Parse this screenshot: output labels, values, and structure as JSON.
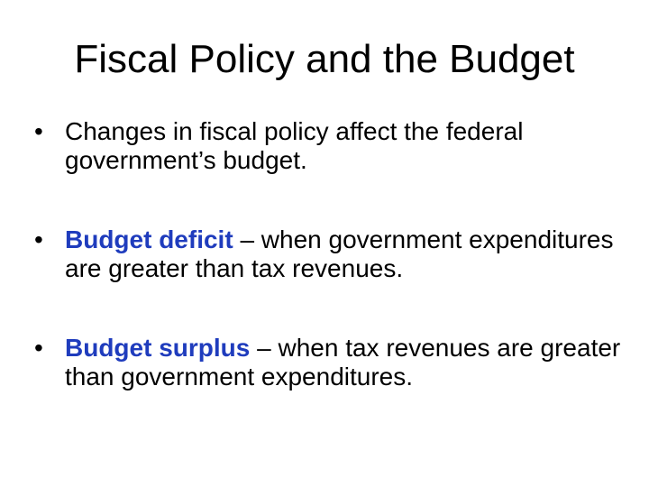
{
  "slide": {
    "title": "Fiscal Policy and the Budget",
    "bullet_marker": "•",
    "term_color": "#1f3cbd",
    "bullets": [
      {
        "term": "",
        "text": "Changes in fiscal policy affect the federal government’s budget."
      },
      {
        "term": "Budget deficit",
        "text": " – when government expenditures are greater than tax revenues."
      },
      {
        "term": "Budget surplus",
        "text": " – when tax revenues are greater than government expenditures."
      }
    ]
  }
}
